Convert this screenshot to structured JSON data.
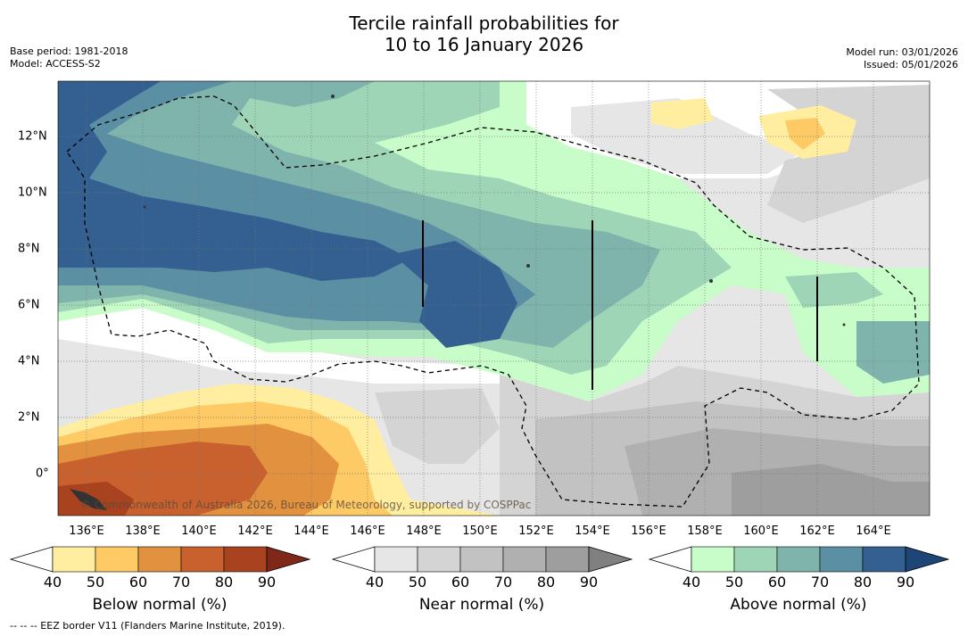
{
  "title": {
    "line1": "Tercile rainfall probabilities for",
    "line2": "10 to 16 January 2026"
  },
  "meta_left": {
    "base_period": "Base period: 1981-2018",
    "model": "Model: ACCESS-S2"
  },
  "meta_right": {
    "model_run": "Model run: 03/01/2026",
    "issued": "Issued: 05/01/2026"
  },
  "map": {
    "lon_range": [
      135,
      166
    ],
    "lat_range": [
      -1.5,
      14
    ],
    "lon_ticks": [
      "136°E",
      "138°E",
      "140°E",
      "142°E",
      "144°E",
      "146°E",
      "148°E",
      "150°E",
      "152°E",
      "154°E",
      "156°E",
      "158°E",
      "160°E",
      "162°E",
      "164°E"
    ],
    "lat_ticks": [
      "12°N",
      "10°N",
      "8°N",
      "6°N",
      "4°N",
      "2°N",
      "0°"
    ],
    "credit": "© Commonwealth of Australia 2026, Bureau of Meteorology, supported by COSPPac",
    "eez_border_style": "dashed black line"
  },
  "colorbars": [
    {
      "name": "below",
      "title": "Below normal (%)",
      "ticks": [
        "40",
        "50",
        "60",
        "70",
        "80",
        "90"
      ],
      "colors": [
        "#ffffff",
        "#ffeea0",
        "#fdca65",
        "#e2913f",
        "#c8612e",
        "#a9431f",
        "#7f2718"
      ]
    },
    {
      "name": "near",
      "title": "Near normal (%)",
      "ticks": [
        "40",
        "50",
        "60",
        "70",
        "80",
        "90"
      ],
      "colors": [
        "#ffffff",
        "#e6e6e6",
        "#d4d4d4",
        "#c2c2c2",
        "#b0b0b0",
        "#9e9e9e",
        "#808080"
      ]
    },
    {
      "name": "above",
      "title": "Above normal (%)",
      "ticks": [
        "40",
        "50",
        "60",
        "70",
        "80",
        "90"
      ],
      "colors": [
        "#ffffff",
        "#c8fcc8",
        "#9fd5b7",
        "#7fb4ac",
        "#5a8fa4",
        "#335f91",
        "#1d4578"
      ]
    }
  ],
  "footnote": "-- -- -- EEZ border V11 (Flanders Marine Institute, 2019)."
}
